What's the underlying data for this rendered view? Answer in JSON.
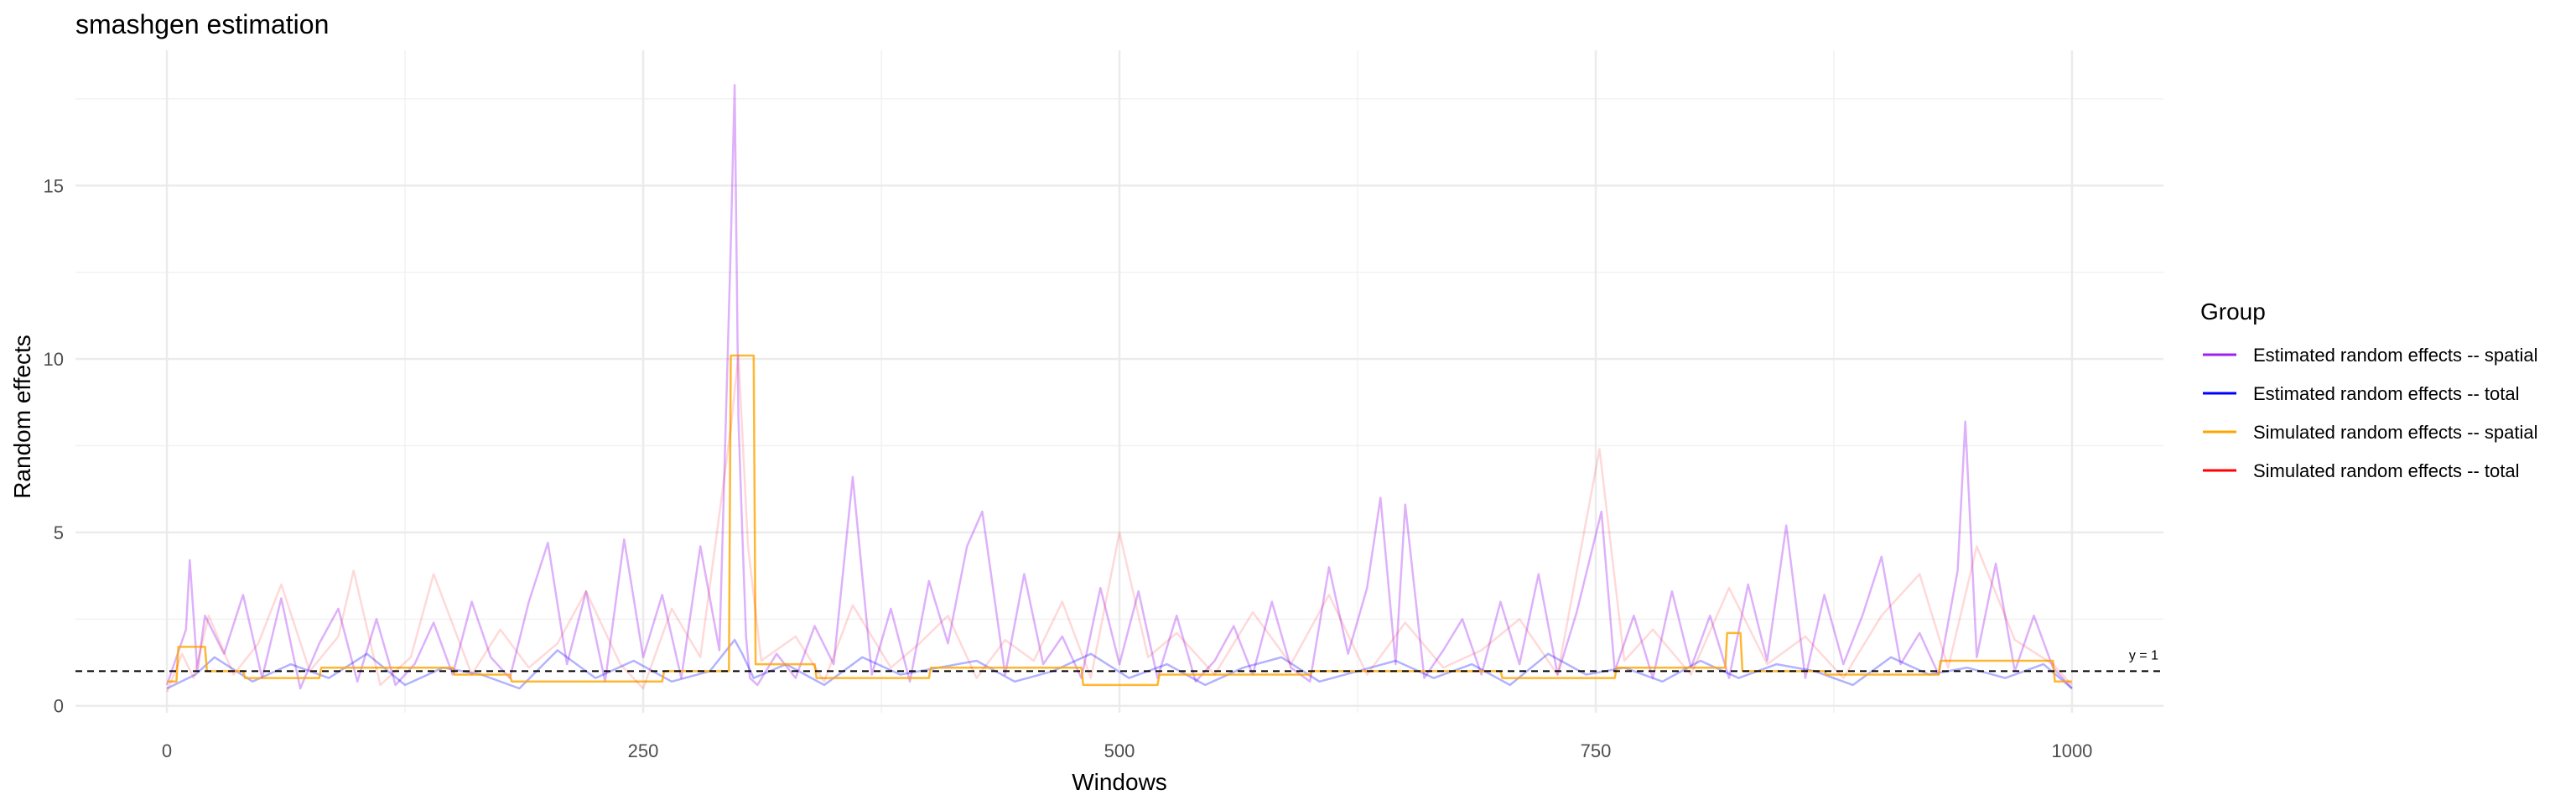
{
  "chart_data": {
    "type": "line",
    "title": "smashgen estimation",
    "xlabel": "Windows",
    "ylabel": "Random effects",
    "xlim": [
      -48,
      1048
    ],
    "ylim": [
      -0.2,
      18.9
    ],
    "x_ticks": [
      0,
      250,
      500,
      750,
      1000
    ],
    "x_tick_labels": [
      "0",
      "250",
      "500",
      "750",
      "1000"
    ],
    "y_ticks": [
      0,
      5,
      10,
      15
    ],
    "y_tick_labels": [
      "0",
      "5",
      "10",
      "15"
    ],
    "grid": true,
    "legend": {
      "title": "Group",
      "position": "right",
      "entries": [
        "Estimated random effects -- spatial",
        "Estimated random effects -- total",
        "Simulated random effects -- spatial",
        "Simulated random effects -- total"
      ]
    },
    "reference_line": {
      "y": 1,
      "label": "y = 1",
      "style": "dashed"
    },
    "series": [
      {
        "name": "Estimated random effects -- spatial",
        "color": "#a020f0",
        "opacity": 0.35,
        "x": [
          0,
          10,
          12,
          16,
          20,
          30,
          40,
          50,
          60,
          70,
          80,
          90,
          100,
          110,
          120,
          130,
          140,
          150,
          160,
          170,
          180,
          190,
          200,
          210,
          220,
          230,
          240,
          250,
          260,
          270,
          280,
          290,
          296,
          298,
          300,
          302,
          304,
          306,
          310,
          320,
          330,
          340,
          350,
          360,
          370,
          380,
          390,
          400,
          410,
          420,
          428,
          440,
          450,
          460,
          470,
          480,
          490,
          500,
          510,
          520,
          530,
          540,
          550,
          560,
          570,
          580,
          590,
          600,
          610,
          620,
          630,
          637,
          645,
          650,
          660,
          670,
          680,
          690,
          700,
          710,
          720,
          730,
          740,
          753,
          760,
          770,
          780,
          790,
          800,
          810,
          820,
          830,
          840,
          850,
          860,
          870,
          880,
          890,
          900,
          910,
          920,
          930,
          940,
          944,
          950,
          960,
          970,
          980,
          990,
          1000
        ],
        "y": [
          0.6,
          2.2,
          4.2,
          1.0,
          2.6,
          1.5,
          3.2,
          0.8,
          3.1,
          0.5,
          1.8,
          2.8,
          0.7,
          2.5,
          0.6,
          1.2,
          2.4,
          0.9,
          3.0,
          1.4,
          0.8,
          3.0,
          4.7,
          1.2,
          3.3,
          0.7,
          4.8,
          1.4,
          3.2,
          0.8,
          4.6,
          1.6,
          13.3,
          17.9,
          8.3,
          5.0,
          2.0,
          0.8,
          0.6,
          1.5,
          0.8,
          2.3,
          1.2,
          6.6,
          0.9,
          2.8,
          0.7,
          3.6,
          1.8,
          4.6,
          5.6,
          0.9,
          3.8,
          1.2,
          2.0,
          0.8,
          3.4,
          1.2,
          3.3,
          0.8,
          2.6,
          0.7,
          1.3,
          2.3,
          0.9,
          3.0,
          1.1,
          0.7,
          4.0,
          1.5,
          3.4,
          6.0,
          1.2,
          5.8,
          0.8,
          1.6,
          2.5,
          0.9,
          3.0,
          1.2,
          3.8,
          0.9,
          2.7,
          5.6,
          1.0,
          2.6,
          0.8,
          3.3,
          1.1,
          2.6,
          0.8,
          3.5,
          1.3,
          5.2,
          0.8,
          3.2,
          1.2,
          2.6,
          4.3,
          1.2,
          2.1,
          0.9,
          3.9,
          8.2,
          1.4,
          4.1,
          1.0,
          2.6,
          1.1,
          0.5
        ]
      },
      {
        "name": "Estimated random effects -- total",
        "color": "#0000ff",
        "opacity": 0.3,
        "x": [
          0,
          15,
          25,
          45,
          65,
          85,
          105,
          125,
          145,
          165,
          185,
          205,
          225,
          245,
          265,
          285,
          298,
          302,
          308,
          325,
          345,
          365,
          385,
          405,
          425,
          445,
          465,
          485,
          505,
          525,
          545,
          565,
          585,
          605,
          625,
          645,
          665,
          685,
          705,
          725,
          745,
          765,
          785,
          805,
          825,
          845,
          865,
          885,
          905,
          925,
          945,
          965,
          985,
          1000
        ],
        "y": [
          0.5,
          0.9,
          1.4,
          0.7,
          1.2,
          0.8,
          1.5,
          0.6,
          1.1,
          0.9,
          0.5,
          1.6,
          0.8,
          1.3,
          0.7,
          1.0,
          1.9,
          1.5,
          0.8,
          1.2,
          0.6,
          1.4,
          0.9,
          1.1,
          1.3,
          0.7,
          1.0,
          1.5,
          0.8,
          1.2,
          0.6,
          1.1,
          1.4,
          0.7,
          1.0,
          1.3,
          0.8,
          1.2,
          0.6,
          1.5,
          0.9,
          1.1,
          0.7,
          1.3,
          0.8,
          1.2,
          1.0,
          0.6,
          1.4,
          0.9,
          1.1,
          0.8,
          1.2,
          0.5
        ]
      },
      {
        "name": "Simulated random effects -- spatial",
        "color": "#ffa500",
        "opacity": 0.8,
        "x": [
          0,
          5,
          6,
          20,
          21,
          40,
          41,
          80,
          81,
          150,
          151,
          180,
          181,
          260,
          261,
          295,
          296,
          308,
          309,
          340,
          341,
          400,
          401,
          480,
          481,
          520,
          521,
          600,
          601,
          700,
          701,
          760,
          761,
          818,
          819,
          826,
          827,
          870,
          871,
          930,
          931,
          990,
          991,
          1000
        ],
        "y": [
          0.7,
          0.7,
          1.7,
          1.7,
          1.0,
          1.0,
          0.8,
          0.8,
          1.1,
          1.1,
          0.9,
          0.9,
          0.7,
          0.7,
          1.0,
          1.0,
          10.1,
          10.1,
          1.2,
          1.2,
          0.8,
          0.8,
          1.1,
          1.1,
          0.6,
          0.6,
          0.9,
          0.9,
          1.0,
          1.0,
          0.8,
          0.8,
          1.1,
          1.1,
          2.1,
          2.1,
          1.0,
          1.0,
          0.9,
          0.9,
          1.3,
          1.3,
          0.7,
          0.7
        ]
      },
      {
        "name": "Simulated random effects -- total",
        "color": "#ff0000",
        "opacity": 0.15,
        "x": [
          0,
          8,
          14,
          22,
          35,
          48,
          60,
          75,
          90,
          98,
          112,
          128,
          140,
          160,
          175,
          190,
          205,
          220,
          238,
          250,
          265,
          280,
          296,
          300,
          305,
          312,
          330,
          345,
          360,
          380,
          395,
          410,
          425,
          440,
          455,
          470,
          485,
          500,
          515,
          530,
          550,
          570,
          590,
          610,
          630,
          650,
          670,
          690,
          710,
          730,
          752,
          765,
          780,
          800,
          820,
          840,
          860,
          880,
          900,
          920,
          935,
          950,
          970,
          990,
          1000
        ],
        "y": [
          0.4,
          1.5,
          0.8,
          2.6,
          0.9,
          1.8,
          3.5,
          1.0,
          2.0,
          3.9,
          0.6,
          1.4,
          3.8,
          0.9,
          2.2,
          1.1,
          1.8,
          3.3,
          1.2,
          0.5,
          2.8,
          1.4,
          8.0,
          10.1,
          4.6,
          1.3,
          2.0,
          0.7,
          2.9,
          1.1,
          1.8,
          2.6,
          0.8,
          1.9,
          1.3,
          3.0,
          0.8,
          5.0,
          1.4,
          2.1,
          0.9,
          2.7,
          1.2,
          3.2,
          0.9,
          2.4,
          1.1,
          1.6,
          2.5,
          0.9,
          7.4,
          1.3,
          2.2,
          0.9,
          3.4,
          1.2,
          2.0,
          0.8,
          2.6,
          3.8,
          1.1,
          4.6,
          1.9,
          1.2,
          0.6
        ]
      }
    ]
  }
}
